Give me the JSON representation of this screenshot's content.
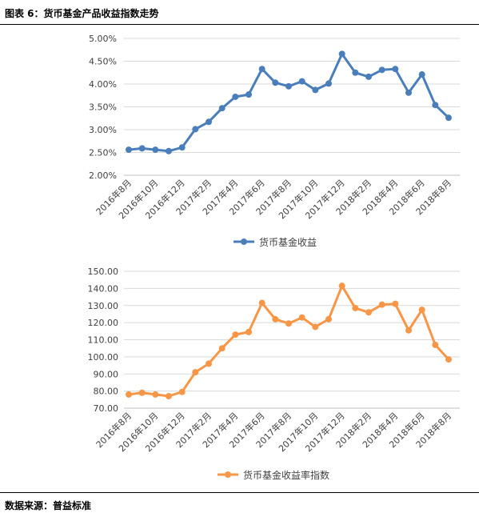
{
  "figure_title": "图表 6：货币基金产品收益指数走势",
  "source_label": "数据来源：普益标准",
  "chart_data": [
    {
      "type": "line",
      "categories": [
        "2016年8月",
        "2016年9月",
        "2016年10月",
        "2016年11月",
        "2016年12月",
        "2017年1月",
        "2017年2月",
        "2017年3月",
        "2017年4月",
        "2017年5月",
        "2017年6月",
        "2017年7月",
        "2017年8月",
        "2017年9月",
        "2017年10月",
        "2017年11月",
        "2017年12月",
        "2018年1月",
        "2018年2月",
        "2018年3月",
        "2018年4月",
        "2018年5月",
        "2018年6月",
        "2018年7月",
        "2018年8月"
      ],
      "x_tick_labels": [
        "2016年8月",
        "2016年10月",
        "2016年12月",
        "2017年2月",
        "2017年4月",
        "2017年6月",
        "2017年8月",
        "2017年10月",
        "2017年12月",
        "2018年2月",
        "2018年4月",
        "2018年6月",
        "2018年8月"
      ],
      "series": [
        {
          "name": "货币基金收益",
          "color": "#4a7ebb",
          "values": [
            2.56,
            2.59,
            2.56,
            2.53,
            2.61,
            3.01,
            3.17,
            3.47,
            3.72,
            3.77,
            4.33,
            4.03,
            3.95,
            4.06,
            3.87,
            4.01,
            4.66,
            4.25,
            4.16,
            4.31,
            4.33,
            3.81,
            4.21,
            3.54,
            3.26
          ]
        }
      ],
      "ylim": [
        2.0,
        5.0
      ],
      "y_ticks": [
        2.0,
        2.5,
        3.0,
        3.5,
        4.0,
        4.5,
        5.0
      ],
      "y_tick_labels": [
        "2.00%",
        "2.50%",
        "3.00%",
        "3.50%",
        "4.00%",
        "4.50%",
        "5.00%"
      ],
      "grid": true,
      "legend_position": "bottom"
    },
    {
      "type": "line",
      "categories": [
        "2016年8月",
        "2016年9月",
        "2016年10月",
        "2016年11月",
        "2016年12月",
        "2017年1月",
        "2017年2月",
        "2017年3月",
        "2017年4月",
        "2017年5月",
        "2017年6月",
        "2017年7月",
        "2017年8月",
        "2017年9月",
        "2017年10月",
        "2017年11月",
        "2017年12月",
        "2018年1月",
        "2018年2月",
        "2018年3月",
        "2018年4月",
        "2018年5月",
        "2018年6月",
        "2018年7月",
        "2018年8月"
      ],
      "x_tick_labels": [
        "2016年8月",
        "2016年10月",
        "2016年12月",
        "2017年2月",
        "2017年4月",
        "2017年6月",
        "2017年8月",
        "2017年10月",
        "2017年12月",
        "2018年2月",
        "2018年4月",
        "2018年6月",
        "2018年8月"
      ],
      "series": [
        {
          "name": "货币基金收益率指数",
          "color": "#f79646",
          "values": [
            78.0,
            79.0,
            78.0,
            77.0,
            79.5,
            91.0,
            96.0,
            105.0,
            113.0,
            114.5,
            131.5,
            122.0,
            119.5,
            123.0,
            117.5,
            122.0,
            141.5,
            128.5,
            126.0,
            130.5,
            131.0,
            115.5,
            127.5,
            107.0,
            98.5
          ]
        }
      ],
      "ylim": [
        70,
        150
      ],
      "y_ticks": [
        70,
        80,
        90,
        100,
        110,
        120,
        130,
        140,
        150
      ],
      "y_tick_labels": [
        "70.00",
        "80.00",
        "90.00",
        "100.00",
        "110.00",
        "120.00",
        "130.00",
        "140.00",
        "150.00"
      ],
      "grid": true,
      "legend_position": "bottom"
    }
  ]
}
